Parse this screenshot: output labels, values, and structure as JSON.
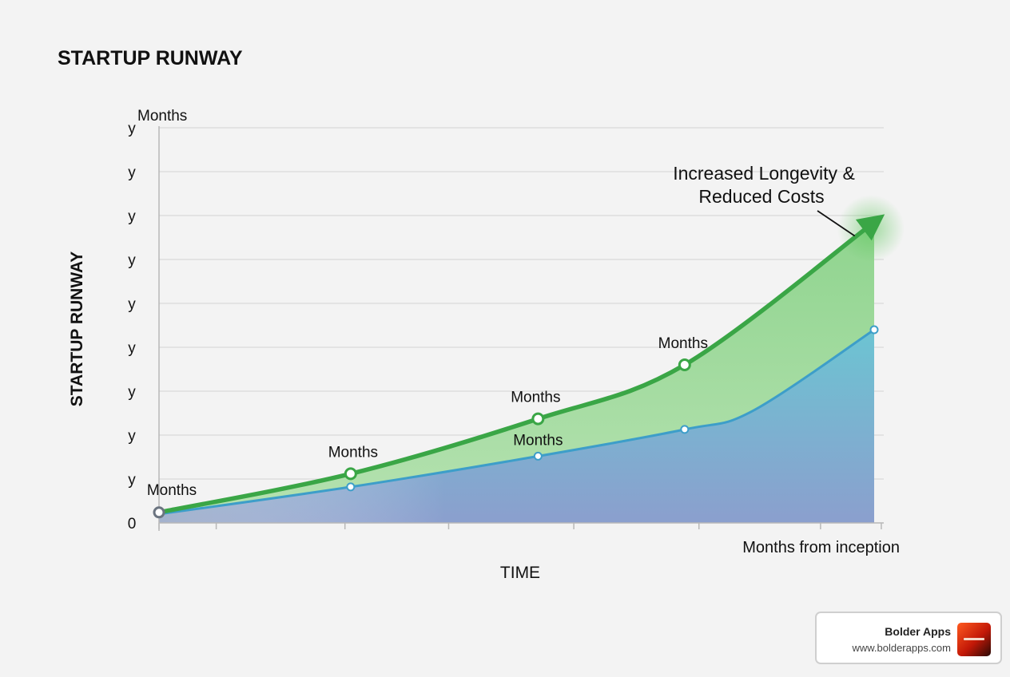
{
  "chart_data": {
    "type": "area",
    "title": "STARTUP RUNWAY",
    "ylabel": "STARTUP RUNWAY",
    "xlabel": "TIME",
    "x_axis_end_label": "Months from inception",
    "y_axis_top_label": "Months",
    "y_tick_labels": [
      "0",
      "y",
      "y",
      "y",
      "y",
      "y",
      "y",
      "y",
      "y",
      "y"
    ],
    "ylim": [
      0,
      9
    ],
    "xlim": [
      0,
      100
    ],
    "x_ticks": [
      0,
      8,
      26,
      40.5,
      58,
      75.5,
      92.5,
      101
    ],
    "grid": "horizontal",
    "series": [
      {
        "role": "upper",
        "color": "#3aa646",
        "points": [
          [
            0,
            0.24
          ],
          [
            26.8,
            1.12
          ],
          [
            53,
            2.37
          ],
          [
            73.5,
            3.6
          ],
          [
            100,
            6.85
          ]
        ],
        "markers": [
          [
            0,
            0.24
          ],
          [
            26.8,
            1.12
          ],
          [
            53,
            2.37
          ],
          [
            73.5,
            3.6
          ]
        ],
        "point_labels": [
          "Months",
          "Months",
          "Months",
          "Months"
        ]
      },
      {
        "role": "lower",
        "color": "#3d9ec9",
        "points": [
          [
            0,
            0.2
          ],
          [
            26.8,
            0.82
          ],
          [
            53,
            1.52
          ],
          [
            73.5,
            2.13
          ],
          [
            83,
            2.55
          ],
          [
            100,
            4.4
          ]
        ],
        "markers": [
          [
            26.8,
            0.82
          ],
          [
            53,
            1.52
          ],
          [
            73.5,
            2.13
          ],
          [
            100,
            4.4
          ]
        ],
        "point_labels": [
          "",
          "Months",
          "",
          ""
        ]
      }
    ],
    "annotation": {
      "lines": [
        "Increased Longevity &",
        "Reduced Costs"
      ],
      "points_to": [
        97.5,
        6.5
      ]
    }
  },
  "badge": {
    "name": "Bolder Apps",
    "url": "www.bolderapps.com"
  }
}
